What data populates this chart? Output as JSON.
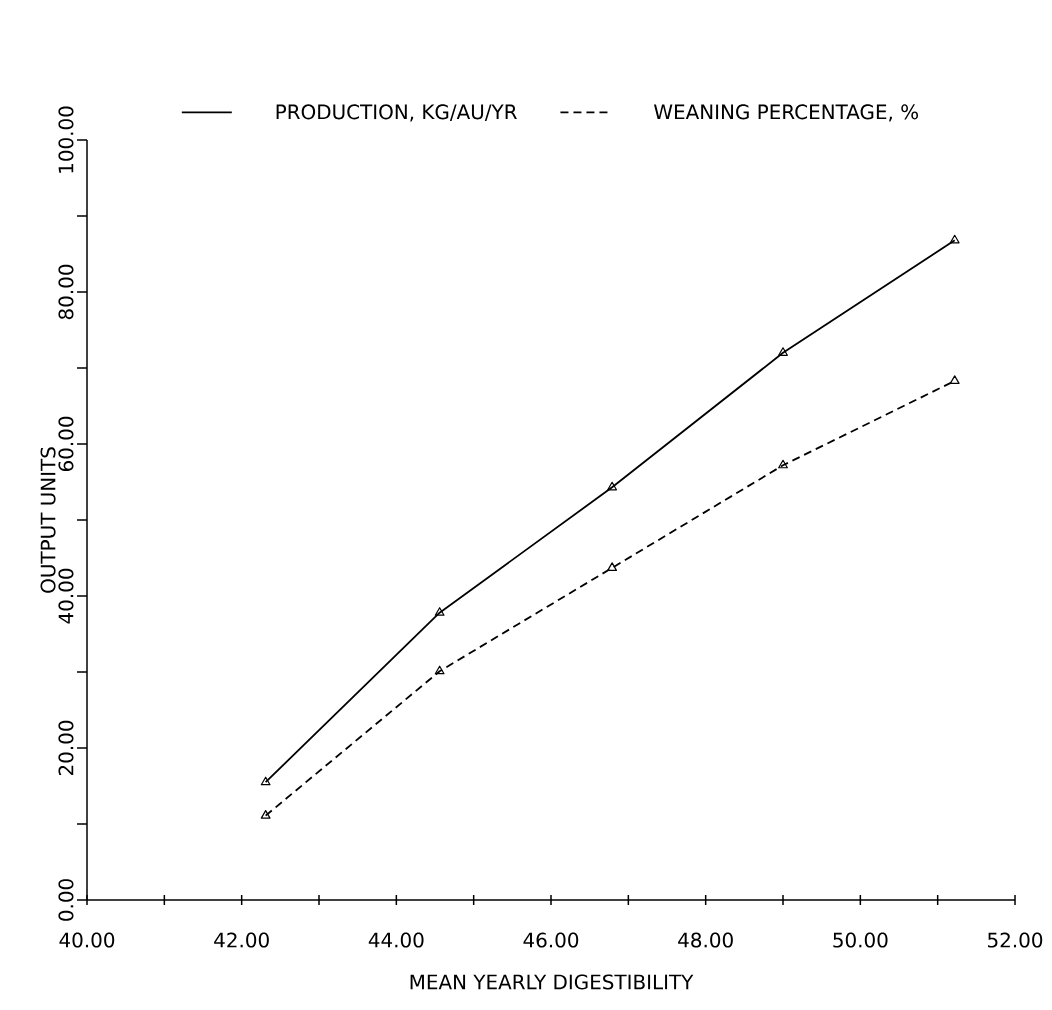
{
  "chart_data": {
    "type": "line",
    "xlabel": "MEAN YEARLY DIGESTIBILITY",
    "ylabel": "OUTPUT UNITS",
    "x": [
      42.31,
      44.56,
      46.79,
      49.0,
      51.22
    ],
    "series": [
      {
        "name": "PRODUCTION, KG/AU/YR",
        "color": "#000000",
        "line_style": "solid",
        "values": [
          15.5,
          37.8,
          54.3,
          72.0,
          86.8
        ]
      },
      {
        "name": "WEANING PERCENTAGE, %",
        "color": "#000000",
        "line_style": "dashed",
        "values": [
          11.1,
          30.1,
          43.7,
          57.2,
          68.3
        ]
      }
    ],
    "xlim": [
      40,
      52
    ],
    "ylim": [
      0,
      100
    ],
    "xticks": [
      {
        "value": 40,
        "label": "40.00"
      },
      {
        "value": 41,
        "label": null
      },
      {
        "value": 42,
        "label": "42.00"
      },
      {
        "value": 43,
        "label": null
      },
      {
        "value": 44,
        "label": "44.00"
      },
      {
        "value": 45,
        "label": null
      },
      {
        "value": 46,
        "label": "46.00"
      },
      {
        "value": 47,
        "label": null
      },
      {
        "value": 48,
        "label": "48.00"
      },
      {
        "value": 49,
        "label": null
      },
      {
        "value": 50,
        "label": "50.00"
      },
      {
        "value": 51,
        "label": null
      },
      {
        "value": 52,
        "label": "52.00"
      }
    ],
    "yticks": [
      {
        "value": 0,
        "label": "0.00"
      },
      {
        "value": 10,
        "label": null
      },
      {
        "value": 20,
        "label": "20.00"
      },
      {
        "value": 30,
        "label": null
      },
      {
        "value": 40,
        "label": "40.00"
      },
      {
        "value": 50,
        "label": null
      },
      {
        "value": 60,
        "label": "60.00"
      },
      {
        "value": 70,
        "label": null
      },
      {
        "value": 80,
        "label": "80.00"
      },
      {
        "value": 90,
        "label": null
      },
      {
        "value": 100,
        "label": "100.00"
      }
    ],
    "marker": "triangle",
    "legend": "top",
    "grid": false
  }
}
